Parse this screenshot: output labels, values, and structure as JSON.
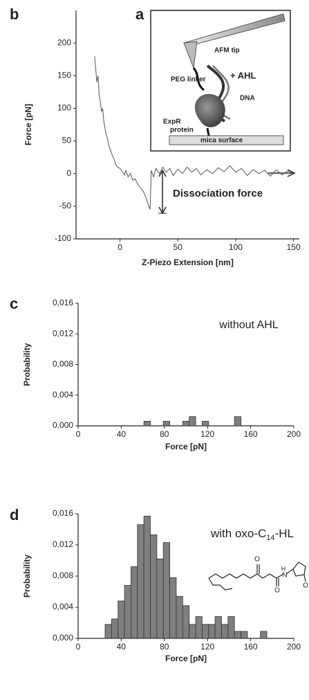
{
  "chart_data": [
    {
      "type": "line",
      "panel": "b",
      "xlabel": "Z-Piezo Extension [nm]",
      "ylabel": "Force [pN]",
      "annotations": [
        "Dissociation force"
      ],
      "inset": {
        "label": "a",
        "texts": [
          "AFM tip",
          "PEG linker",
          "+ AHL",
          "DNA",
          "ExpR",
          "protein",
          "mica surface"
        ]
      },
      "xlim": [
        -38,
        155
      ],
      "ylim": [
        -100,
        250
      ],
      "xticks": [
        0,
        50,
        100,
        150
      ],
      "yticks": [
        -100,
        -50,
        0,
        50,
        100,
        150,
        200
      ],
      "color": "#555555",
      "x": [
        -22,
        -21,
        -20,
        -19,
        -18,
        -17,
        -16,
        -15,
        -14,
        -13,
        -12,
        -11,
        -10,
        -9,
        -8,
        -7,
        -6,
        -5,
        -4,
        -3,
        -2,
        0,
        2,
        4,
        5,
        7,
        9,
        11,
        13,
        15,
        17,
        19,
        21,
        23,
        25,
        26,
        27,
        29,
        31,
        34,
        37,
        40,
        43,
        46,
        50,
        54,
        58,
        62,
        66,
        70,
        75,
        80,
        85,
        90,
        95,
        100,
        105,
        110,
        115,
        120,
        125,
        130,
        135,
        140,
        145,
        150
      ],
      "y": [
        180,
        160,
        140,
        150,
        120,
        110,
        95,
        100,
        80,
        70,
        60,
        55,
        45,
        40,
        35,
        30,
        25,
        22,
        15,
        12,
        10,
        8,
        3,
        -2,
        5,
        -5,
        0,
        -10,
        -8,
        -15,
        -20,
        -25,
        -30,
        -40,
        -50,
        -55,
        5,
        -5,
        8,
        0,
        10,
        2,
        8,
        -3,
        7,
        0,
        10,
        2,
        8,
        -2,
        6,
        0,
        9,
        3,
        12,
        2,
        8,
        -3,
        6,
        0,
        5,
        -4,
        6,
        -2,
        4,
        0
      ]
    },
    {
      "type": "histogram",
      "panel": "c",
      "xlabel": "Force [pN]",
      "ylabel": "Probability",
      "annotation": [
        "without AHL"
      ],
      "xlim": [
        0,
        200
      ],
      "ylim": [
        0,
        0.016
      ],
      "xticks": [
        0,
        40,
        80,
        120,
        160,
        200
      ],
      "yticks": [
        {
          "value": 0,
          "label": "0,000"
        },
        {
          "value": 0.004,
          "label": "0,004"
        },
        {
          "value": 0.008,
          "label": "0,008"
        },
        {
          "value": 0.012,
          "label": "0,012"
        },
        {
          "value": 0.016,
          "label": "0,016"
        }
      ],
      "color": "#7f7f7f",
      "bins": [
        25,
        31,
        37,
        43,
        49,
        55,
        61,
        67,
        73,
        79,
        85,
        91,
        97,
        103,
        109,
        115,
        121,
        127,
        133,
        139,
        145,
        151,
        157,
        163,
        169,
        175
      ],
      "values": [
        0,
        0,
        0,
        0,
        0,
        0,
        0.0006,
        0,
        0,
        0.0006,
        0,
        0,
        0.0006,
        0.0012,
        0,
        0.0006,
        0,
        0,
        0,
        0,
        0.0012,
        0,
        0,
        0,
        0
      ]
    },
    {
      "type": "histogram",
      "panel": "d",
      "xlabel": "Force [pN]",
      "ylabel": "Probability",
      "annotation": [
        "with oxo-C",
        "14",
        "-HL"
      ],
      "structure_labels": [
        "O",
        "H",
        "N",
        "O",
        "O"
      ],
      "xlim": [
        0,
        200
      ],
      "ylim": [
        0,
        0.016
      ],
      "xticks": [
        0,
        40,
        80,
        120,
        160,
        200
      ],
      "yticks": [
        {
          "value": 0,
          "label": "0,000"
        },
        {
          "value": 0.004,
          "label": "0,004"
        },
        {
          "value": 0.008,
          "label": "0,008"
        },
        {
          "value": 0.012,
          "label": "0,012"
        },
        {
          "value": 0.016,
          "label": "0,016"
        }
      ],
      "color": "#7f7f7f",
      "bins": [
        25,
        31,
        37,
        43,
        49,
        55,
        61,
        67,
        73,
        79,
        85,
        91,
        97,
        103,
        109,
        115,
        121,
        127,
        133,
        139,
        145,
        151,
        157,
        163,
        169,
        175
      ],
      "values": [
        0.0018,
        0.0025,
        0.0048,
        0.0068,
        0.0092,
        0.0146,
        0.0157,
        0.0133,
        0.0102,
        0.0123,
        0.0078,
        0.0054,
        0.0042,
        0.0018,
        0.0028,
        0.0018,
        0.0018,
        0.0028,
        0.0018,
        0.0028,
        0.0009,
        0.0009,
        0,
        0,
        0.0009
      ]
    }
  ]
}
